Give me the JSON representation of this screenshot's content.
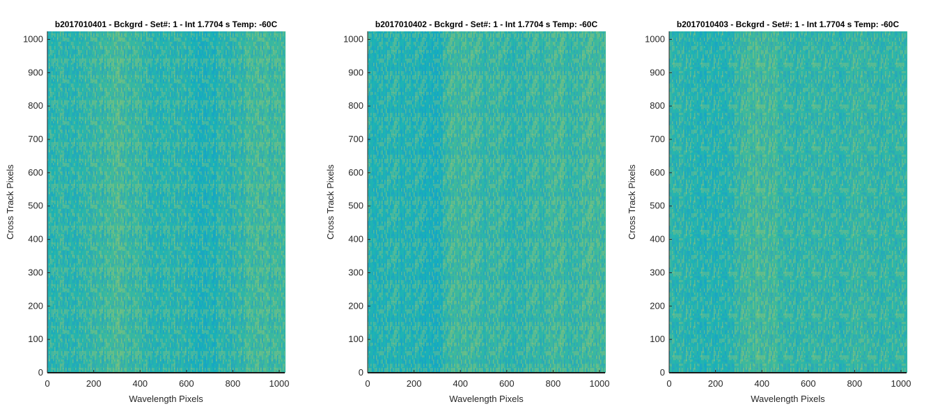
{
  "chart_data": [
    {
      "type": "heatmap",
      "title": "b2017010401 - Bckgrd - Set#: 1 - Int 1.7704 s Temp: -60C",
      "xlabel": "Wavelength Pixels",
      "ylabel": "Cross Track Pixels",
      "xlim": [
        0,
        1024
      ],
      "ylim": [
        0,
        1024
      ],
      "xticks": [
        0,
        200,
        400,
        600,
        800,
        1000
      ],
      "yticks": [
        0,
        100,
        200,
        300,
        400,
        500,
        600,
        700,
        800,
        900,
        1000
      ],
      "colormap": "parula",
      "column_intensity_profile": {
        "x": [
          0,
          60,
          120,
          180,
          250,
          300,
          350,
          400,
          450,
          500,
          550,
          600,
          650,
          700,
          750,
          800,
          850,
          900,
          950,
          1024
        ],
        "level": [
          0.4,
          0.46,
          0.42,
          0.48,
          0.55,
          0.6,
          0.56,
          0.48,
          0.44,
          0.42,
          0.46,
          0.42,
          0.34,
          0.36,
          0.42,
          0.46,
          0.52,
          0.58,
          0.56,
          0.52
        ]
      }
    },
    {
      "type": "heatmap",
      "title": "b2017010402 - Bckgrd - Set#: 1 - Int 1.7704 s Temp: -60C",
      "xlabel": "Wavelength Pixels",
      "ylabel": "Cross Track Pixels",
      "xlim": [
        0,
        1024
      ],
      "ylim": [
        0,
        1024
      ],
      "xticks": [
        0,
        200,
        400,
        600,
        800,
        1000
      ],
      "yticks": [
        0,
        100,
        200,
        300,
        400,
        500,
        600,
        700,
        800,
        900,
        1000
      ],
      "colormap": "parula",
      "column_intensity_profile": {
        "x": [
          0,
          60,
          120,
          180,
          250,
          300,
          350,
          400,
          450,
          500,
          550,
          600,
          650,
          700,
          750,
          800,
          850,
          900,
          950,
          1024
        ],
        "level": [
          0.4,
          0.38,
          0.42,
          0.4,
          0.36,
          0.3,
          0.52,
          0.56,
          0.52,
          0.48,
          0.52,
          0.46,
          0.44,
          0.48,
          0.5,
          0.56,
          0.54,
          0.5,
          0.56,
          0.58
        ]
      }
    },
    {
      "type": "heatmap",
      "title": "b2017010403 - Bckgrd - Set#: 1 - Int 1.7704 s Temp: -60C",
      "xlabel": "Wavelength Pixels",
      "ylabel": "Cross Track Pixels",
      "xlim": [
        0,
        1024
      ],
      "ylim": [
        0,
        1024
      ],
      "xticks": [
        0,
        200,
        400,
        600,
        800,
        1000
      ],
      "yticks": [
        0,
        100,
        200,
        300,
        400,
        500,
        600,
        700,
        800,
        900,
        1000
      ],
      "colormap": "parula",
      "column_intensity_profile": {
        "x": [
          0,
          60,
          120,
          180,
          250,
          300,
          350,
          400,
          450,
          500,
          550,
          600,
          650,
          700,
          750,
          800,
          850,
          900,
          950,
          1024
        ],
        "level": [
          0.46,
          0.44,
          0.4,
          0.38,
          0.4,
          0.5,
          0.58,
          0.6,
          0.56,
          0.48,
          0.46,
          0.48,
          0.5,
          0.48,
          0.46,
          0.52,
          0.5,
          0.48,
          0.46,
          0.48
        ]
      }
    }
  ]
}
